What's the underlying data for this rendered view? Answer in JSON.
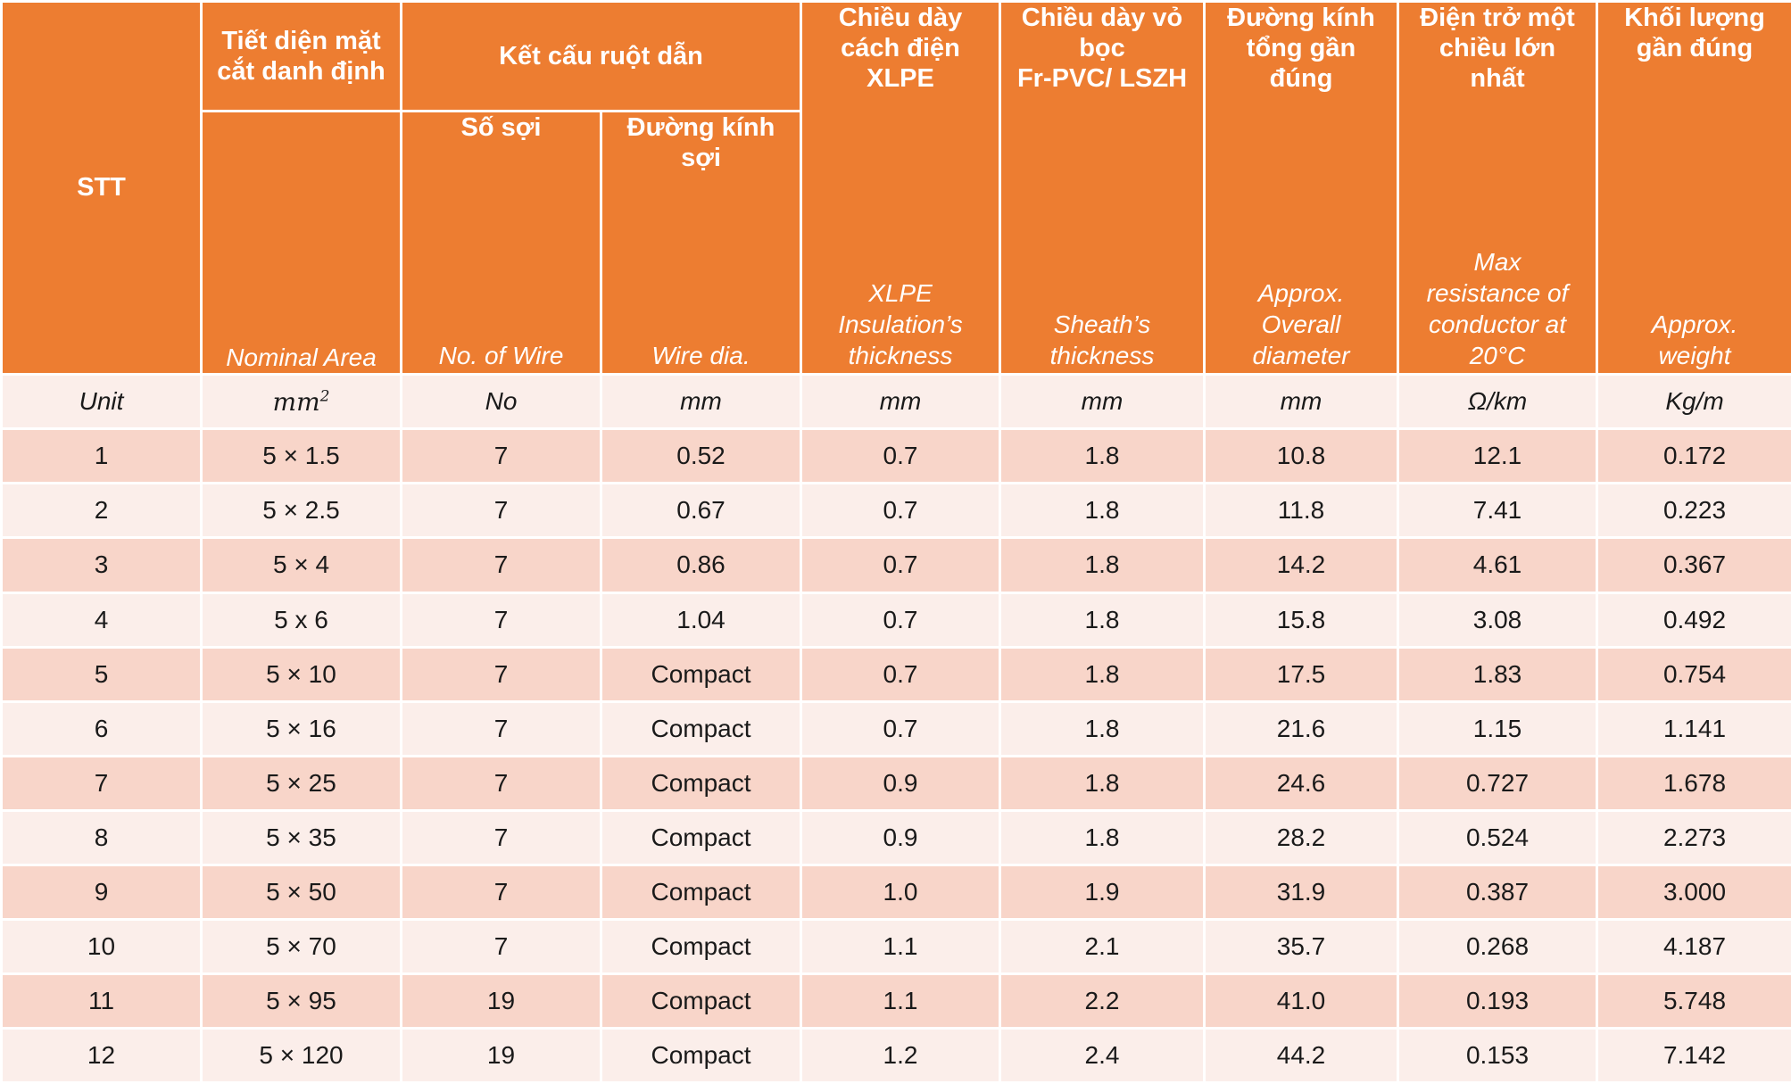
{
  "headers": {
    "stt": "STT",
    "area_vn": "Tiết diện mặt\ncắt danh định",
    "area_en": "Nominal Area",
    "conductor_group": "Kết cấu ruột dẫn",
    "wires_vn": "Số sợi",
    "wires_en": "No. of Wire",
    "wiredia_vn": "Đường kính\nsợi",
    "wiredia_en": "Wire dia.",
    "insulation_vn": "Chiều dày\ncách điện\nXLPE",
    "insulation_en": "XLPE\nInsulation’s\nthickness",
    "sheath_vn": "Chiều dày vỏ\nbọc\nFr-PVC/ LSZH",
    "sheath_en": "Sheath’s\nthickness",
    "overall_vn": "Đường kính\ntổng gần\nđúng",
    "overall_en": "Approx.\nOverall\ndiameter",
    "resistance_vn": "Điện trở một\nchiều lớn\nnhất",
    "resistance_en": "Max\nresistance of\nconductor at\n20°C",
    "weight_vn": "Khối lượng\ngần đúng",
    "weight_en": "Approx.\nweight"
  },
  "units": {
    "label": "Unit",
    "area_base": "mm",
    "area_exp": "2",
    "wires": "No",
    "wiredia": "mm",
    "insulation": "mm",
    "sheath": "mm",
    "overall": "mm",
    "resistance": "Ω/km",
    "weight": "Kg/m"
  },
  "rows": [
    [
      "1",
      "5 × 1.5",
      "7",
      "0.52",
      "0.7",
      "1.8",
      "10.8",
      "12.1",
      "0.172"
    ],
    [
      "2",
      "5 × 2.5",
      "7",
      "0.67",
      "0.7",
      "1.8",
      "11.8",
      "7.41",
      "0.223"
    ],
    [
      "3",
      "5 × 4",
      "7",
      "0.86",
      "0.7",
      "1.8",
      "14.2",
      "4.61",
      "0.367"
    ],
    [
      "4",
      "5 x 6",
      "7",
      "1.04",
      "0.7",
      "1.8",
      "15.8",
      "3.08",
      "0.492"
    ],
    [
      "5",
      "5 × 10",
      "7",
      "Compact",
      "0.7",
      "1.8",
      "17.5",
      "1.83",
      "0.754"
    ],
    [
      "6",
      "5 × 16",
      "7",
      "Compact",
      "0.7",
      "1.8",
      "21.6",
      "1.15",
      "1.141"
    ],
    [
      "7",
      "5 × 25",
      "7",
      "Compact",
      "0.9",
      "1.8",
      "24.6",
      "0.727",
      "1.678"
    ],
    [
      "8",
      "5 × 35",
      "7",
      "Compact",
      "0.9",
      "1.8",
      "28.2",
      "0.524",
      "2.273"
    ],
    [
      "9",
      "5 × 50",
      "7",
      "Compact",
      "1.0",
      "1.9",
      "31.9",
      "0.387",
      "3.000"
    ],
    [
      "10",
      "5 × 70",
      "7",
      "Compact",
      "1.1",
      "2.1",
      "35.7",
      "0.268",
      "4.187"
    ],
    [
      "11",
      "5 × 95",
      "19",
      "Compact",
      "1.1",
      "2.2",
      "41.0",
      "0.193",
      "5.748"
    ],
    [
      "12",
      "5 × 120",
      "19",
      "Compact",
      "1.2",
      "2.4",
      "44.2",
      "0.153",
      "7.142"
    ]
  ]
}
